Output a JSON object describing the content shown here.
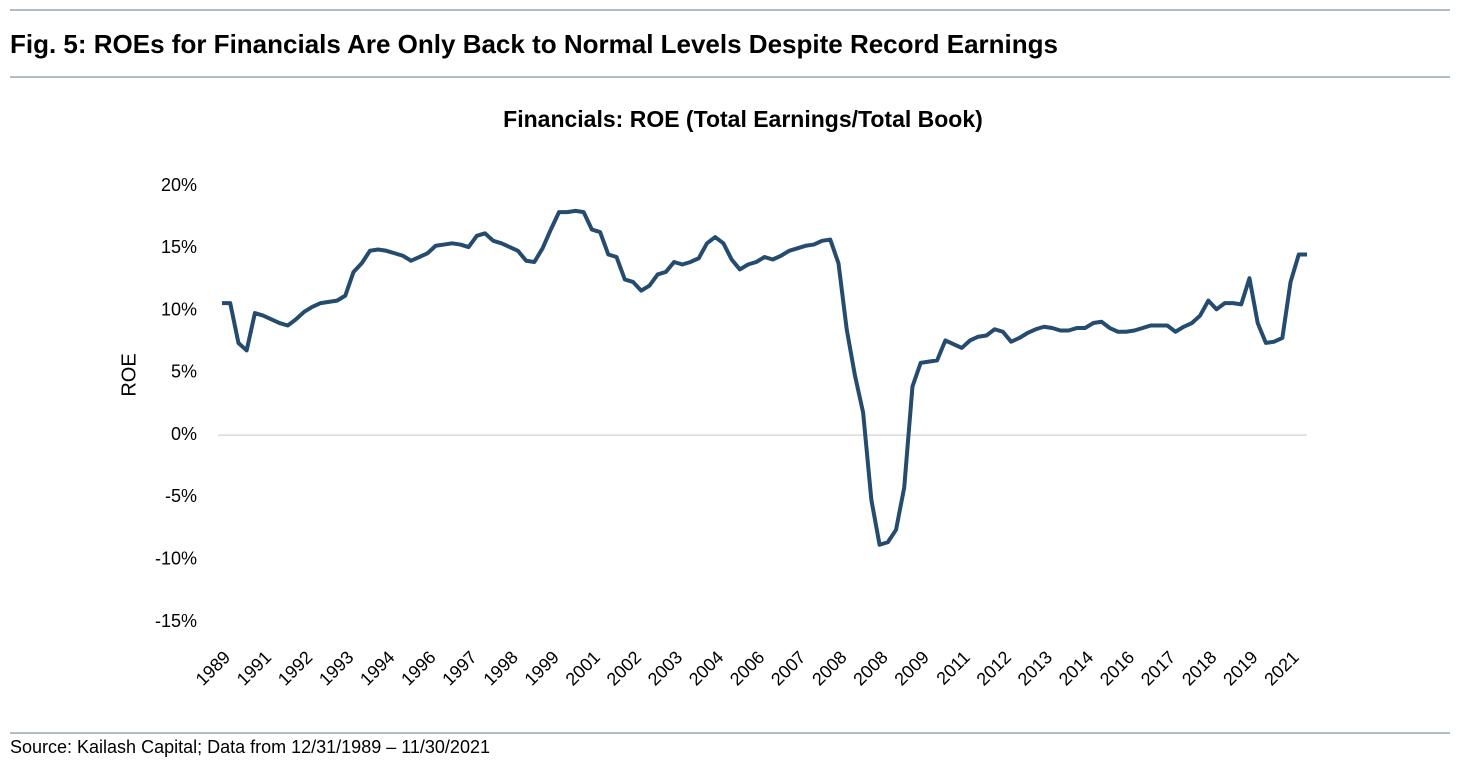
{
  "header": {
    "title": "Fig. 5:  ROEs for Financials Are Only Back to Normal Levels Despite Record Earnings"
  },
  "footer": {
    "source": "Source: Kailash Capital; Data from 12/31/1989 – 11/30/2021"
  },
  "chart_data": {
    "type": "line",
    "title": "Financials: ROE (Total Earnings/Total Book)",
    "y_label": "ROE",
    "categories": [
      "1989",
      null,
      null,
      null,
      null,
      "1991",
      null,
      null,
      null,
      null,
      "1992",
      null,
      null,
      null,
      null,
      "1993",
      null,
      null,
      null,
      null,
      "1994",
      null,
      null,
      null,
      null,
      "1996",
      null,
      null,
      null,
      null,
      "1997",
      null,
      null,
      null,
      null,
      "1998",
      null,
      null,
      null,
      null,
      "1999",
      null,
      null,
      null,
      null,
      "2001",
      null,
      null,
      null,
      null,
      "2002",
      null,
      null,
      null,
      null,
      "2003",
      null,
      null,
      null,
      null,
      "2004",
      null,
      null,
      null,
      null,
      "2006",
      null,
      null,
      null,
      null,
      "2007",
      null,
      null,
      null,
      null,
      "2008",
      null,
      null,
      null,
      null,
      "2008",
      null,
      null,
      null,
      null,
      "2009",
      null,
      null,
      null,
      null,
      "2011",
      null,
      null,
      null,
      null,
      "2012",
      null,
      null,
      null,
      null,
      "2013",
      null,
      null,
      null,
      null,
      "2014",
      null,
      null,
      null,
      null,
      "2016",
      null,
      null,
      null,
      null,
      "2017",
      null,
      null,
      null,
      null,
      "2018",
      null,
      null,
      null,
      null,
      "2019",
      null,
      null,
      null,
      null,
      "2021",
      null,
      null
    ],
    "series": [
      {
        "name": "ROE",
        "color": "#254b6f",
        "values": [
          10.6,
          10.6,
          7.4,
          6.8,
          9.8,
          9.6,
          9.3,
          9.0,
          8.8,
          9.3,
          9.9,
          10.3,
          10.6,
          10.7,
          10.8,
          11.2,
          13.1,
          13.8,
          14.8,
          14.9,
          14.8,
          14.6,
          14.4,
          14.0,
          14.3,
          14.6,
          15.2,
          15.3,
          15.4,
          15.3,
          15.1,
          16.0,
          16.2,
          15.6,
          15.4,
          15.1,
          14.8,
          14.0,
          13.9,
          15.0,
          16.5,
          17.9,
          17.9,
          18.0,
          17.9,
          16.5,
          16.3,
          14.5,
          14.3,
          12.5,
          12.3,
          11.6,
          12.0,
          12.9,
          13.1,
          13.9,
          13.7,
          13.9,
          14.2,
          15.4,
          15.9,
          15.4,
          14.1,
          13.3,
          13.7,
          13.9,
          14.3,
          14.1,
          14.4,
          14.8,
          15.0,
          15.2,
          15.3,
          15.6,
          15.7,
          13.8,
          8.5,
          4.8,
          1.8,
          -5.2,
          -8.8,
          -8.6,
          -7.6,
          -4.2,
          3.9,
          5.8,
          5.9,
          6.0,
          7.6,
          7.3,
          7.0,
          7.6,
          7.9,
          8.0,
          8.5,
          8.3,
          7.5,
          7.8,
          8.2,
          8.5,
          8.7,
          8.6,
          8.4,
          8.4,
          8.6,
          8.6,
          9.0,
          9.1,
          8.6,
          8.3,
          8.3,
          8.4,
          8.6,
          8.8,
          8.8,
          8.8,
          8.3,
          8.7,
          9.0,
          9.6,
          10.8,
          10.1,
          10.6,
          10.6,
          10.5,
          12.6,
          9.0,
          7.4,
          7.5,
          7.8,
          12.3,
          14.5,
          14.5
        ]
      }
    ],
    "ylim": [
      -15,
      20
    ],
    "yticks": [
      {
        "value": -15,
        "label": "-15%"
      },
      {
        "value": -10,
        "label": "-10%"
      },
      {
        "value": -5,
        "label": "-5%"
      },
      {
        "value": 0,
        "label": "0%"
      },
      {
        "value": 5,
        "label": "5%"
      },
      {
        "value": 10,
        "label": "10%"
      },
      {
        "value": 15,
        "label": "15%"
      },
      {
        "value": 20,
        "label": "20%"
      }
    ],
    "grid": false
  }
}
